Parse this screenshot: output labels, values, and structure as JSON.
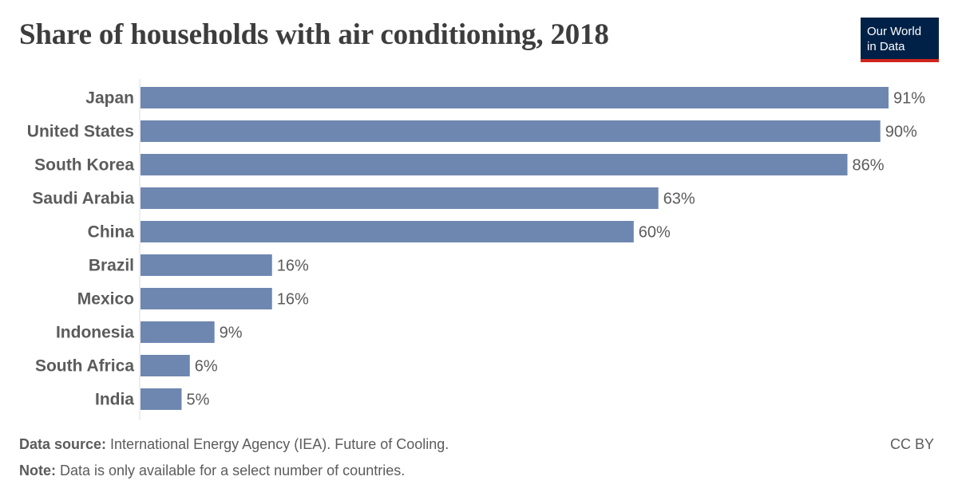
{
  "header": {
    "title": "Share of households with air conditioning, 2018",
    "logo_line1": "Our World",
    "logo_line2": "in Data"
  },
  "footer": {
    "source_label": "Data source:",
    "source_text": " International Energy Agency (IEA). Future of Cooling.",
    "note_label": "Note:",
    "note_text": " Data is only available for a select number of countries.",
    "license": "CC BY"
  },
  "colors": {
    "bar": "#6e87b0",
    "axis": "#dddddd"
  },
  "chart_data": {
    "type": "bar",
    "orientation": "horizontal",
    "categories": [
      "Japan",
      "United States",
      "South Korea",
      "Saudi Arabia",
      "China",
      "Brazil",
      "Mexico",
      "Indonesia",
      "South Africa",
      "India"
    ],
    "values": [
      91,
      90,
      86,
      63,
      60,
      16,
      16,
      9,
      6,
      5
    ],
    "value_labels": [
      "91%",
      "90%",
      "86%",
      "63%",
      "60%",
      "16%",
      "16%",
      "9%",
      "6%",
      "5%"
    ],
    "xlim": [
      0,
      91
    ]
  }
}
